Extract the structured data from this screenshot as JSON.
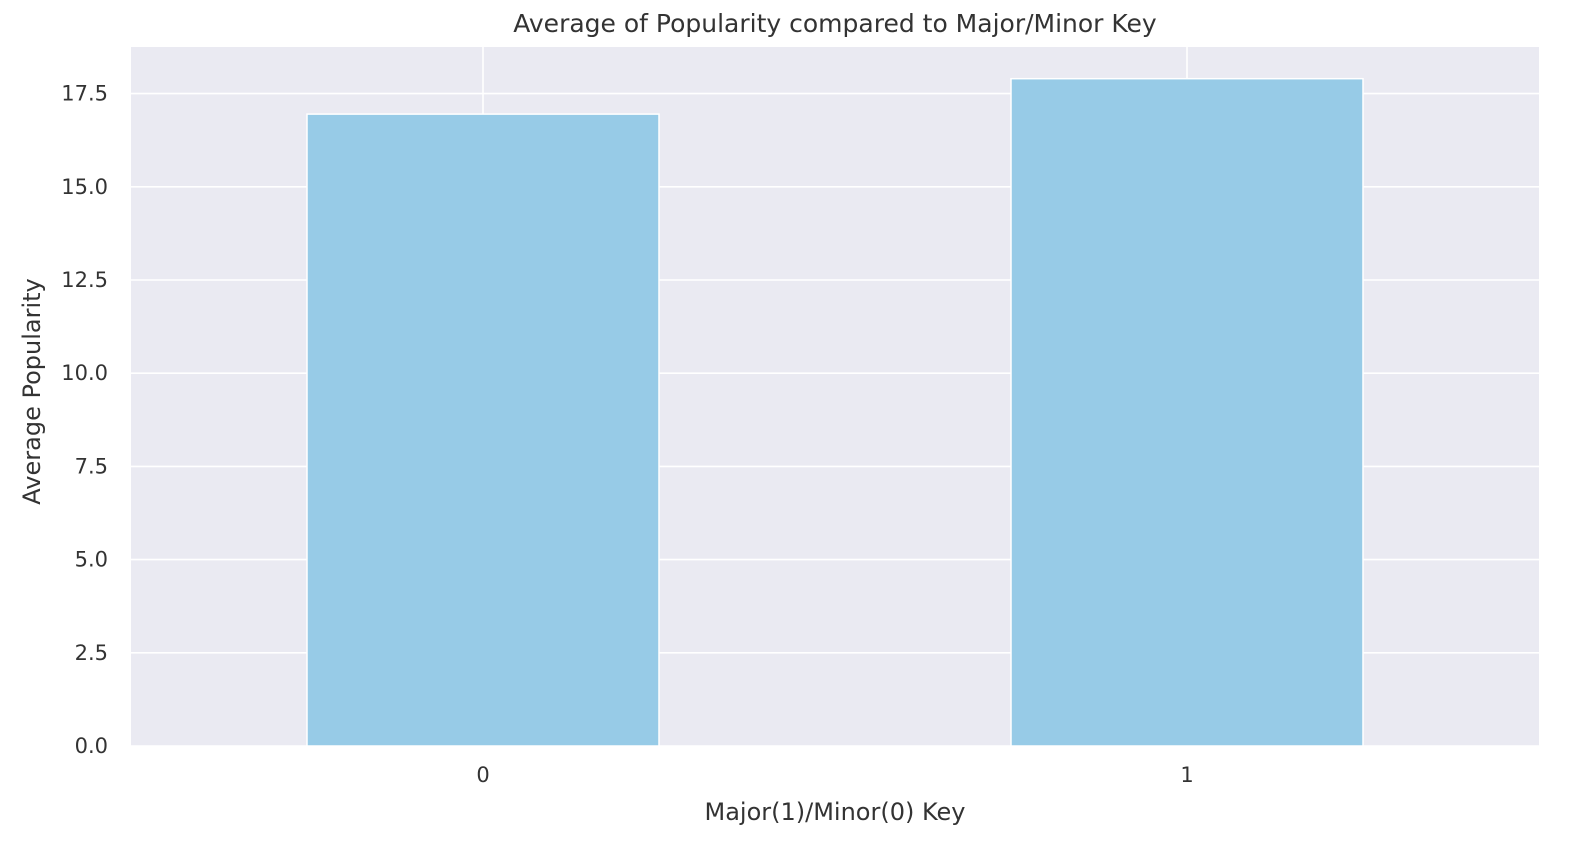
{
  "chart_data": {
    "type": "bar",
    "title": "Average of Popularity compared to Major/Minor Key",
    "xlabel": "Major(1)/Minor(0) Key",
    "ylabel": "Average Popularity",
    "categories": [
      "0",
      "1"
    ],
    "values": [
      16.95,
      17.9
    ],
    "ylim": [
      0,
      18.75
    ],
    "yticks": [
      "0.0",
      "2.5",
      "5.0",
      "7.5",
      "10.0",
      "12.5",
      "15.0",
      "17.5"
    ],
    "grid": true,
    "legend": "none",
    "colors": {
      "bar": "#97cbe7",
      "plot_background": "#eaeaf2",
      "grid": "#ffffff",
      "text": "#333333"
    }
  }
}
